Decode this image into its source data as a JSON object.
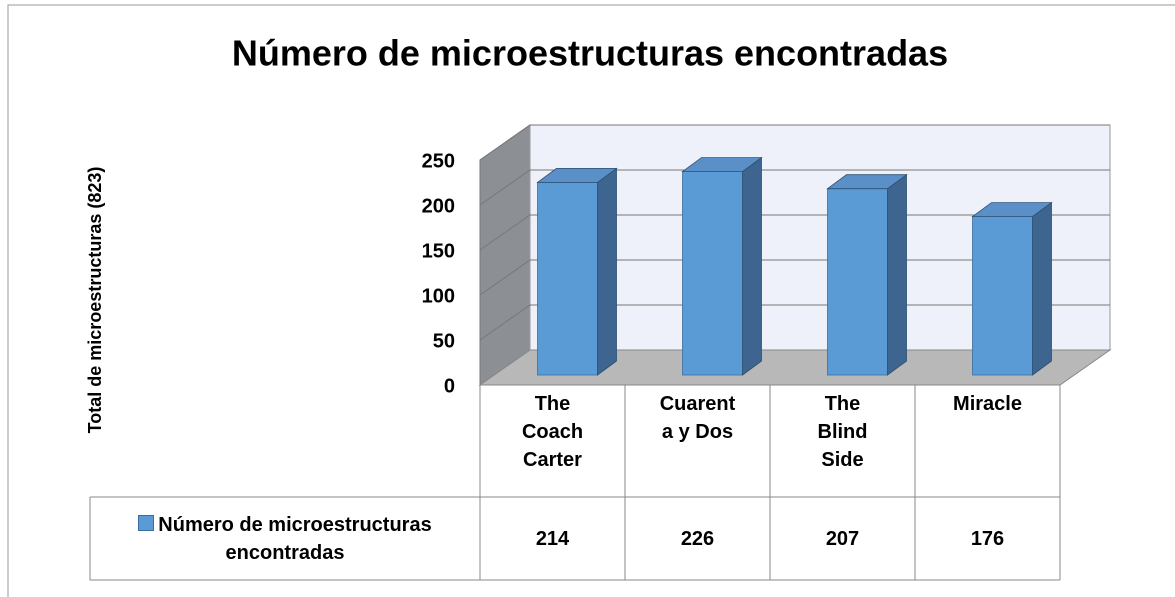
{
  "chart_data": {
    "type": "bar3d",
    "title": "Número de microestructuras encontradas",
    "y_label": "Total de microestructuras (823)",
    "categories": [
      "The Coach Carter",
      "Cuarenta y Dos",
      "The Blind Side",
      "Miracle"
    ],
    "series": [
      {
        "name": "Número de microestructuras encontradas",
        "color": "#5b9bd5",
        "values": [
          214,
          226,
          207,
          176
        ]
      }
    ],
    "ylim": [
      0,
      250
    ],
    "yticks": [
      0,
      50,
      100,
      150,
      200,
      250
    ],
    "grid": true,
    "data_table": true
  }
}
